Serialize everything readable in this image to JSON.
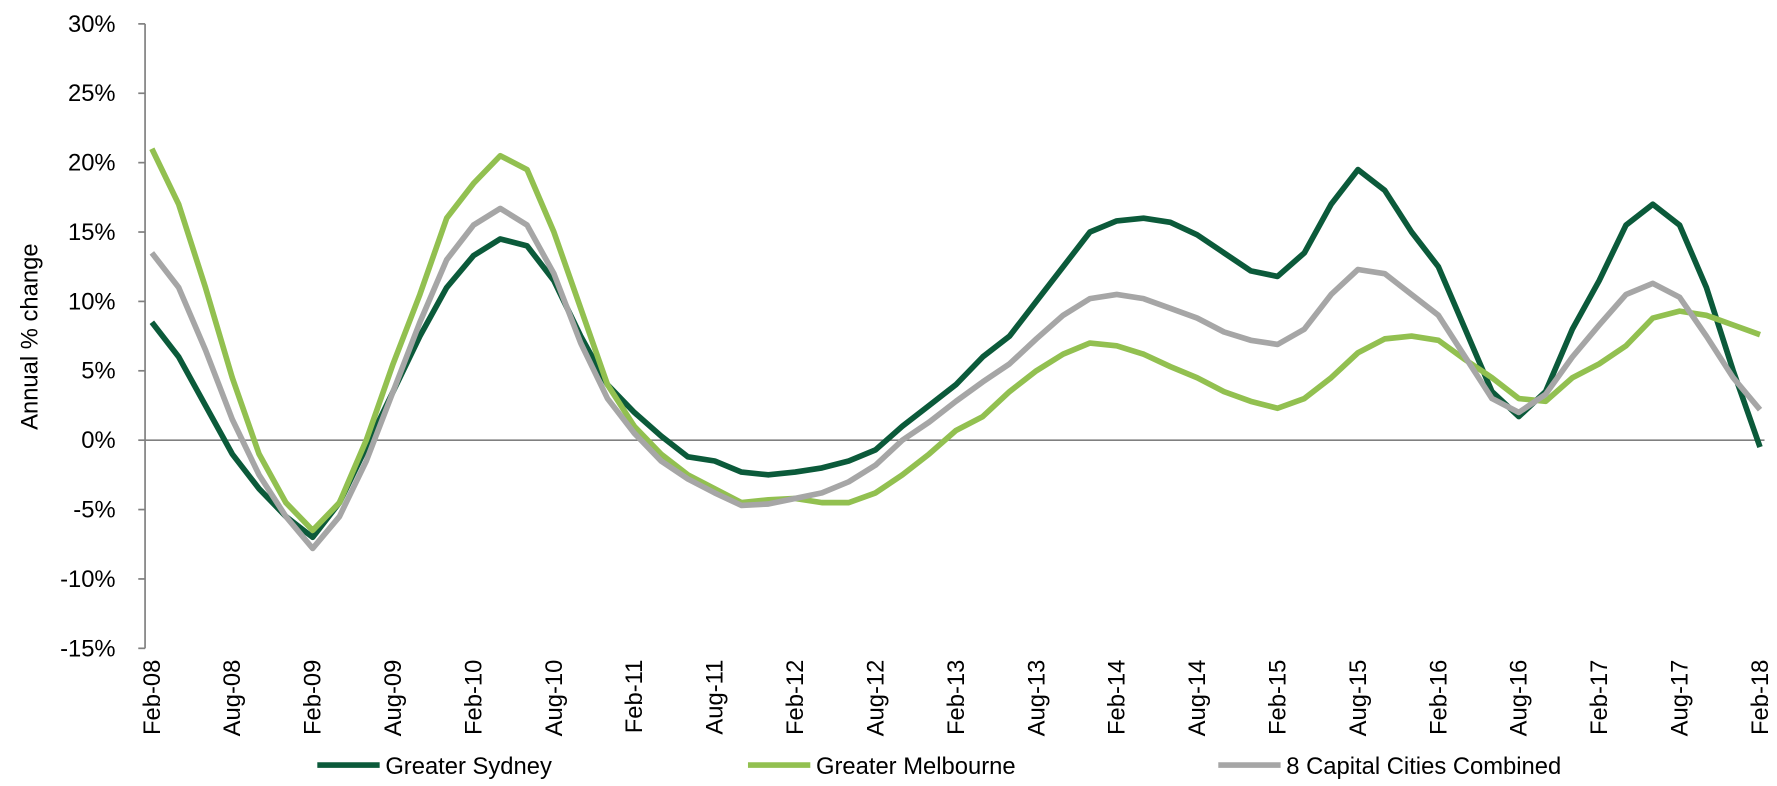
{
  "chart_data": {
    "type": "line",
    "y_label": "Annual % change",
    "categories": [
      "Feb-08",
      null,
      null,
      "Aug-08",
      null,
      null,
      "Feb-09",
      null,
      null,
      "Aug-09",
      null,
      null,
      "Feb-10",
      null,
      null,
      "Aug-10",
      null,
      null,
      "Feb-11",
      null,
      null,
      "Aug-11",
      null,
      null,
      "Feb-12",
      null,
      null,
      "Aug-12",
      null,
      null,
      "Feb-13",
      null,
      null,
      "Aug-13",
      null,
      null,
      "Feb-14",
      null,
      null,
      "Aug-14",
      null,
      null,
      "Feb-15",
      null,
      null,
      "Aug-15",
      null,
      null,
      "Feb-16",
      null,
      null,
      "Aug-16",
      null,
      null,
      "Feb-17",
      null,
      null,
      "Aug-17",
      null,
      null,
      "Feb-18"
    ],
    "series": [
      {
        "name": "Greater Sydney",
        "color": "#0b5a3a",
        "values": [
          8.5,
          6,
          2.5,
          -1,
          -3.5,
          -5.5,
          -7,
          -4.5,
          -0.5,
          3.5,
          7.5,
          11,
          13.3,
          14.5,
          14,
          11.5,
          7.5,
          4,
          2,
          0.3,
          -1.2,
          -1.5,
          -2.3,
          -2.5,
          -2.3,
          -2,
          -1.5,
          -0.7,
          1,
          2.5,
          4,
          6,
          7.5,
          10,
          12.5,
          15,
          15.8,
          16,
          15.7,
          14.8,
          13.5,
          12.2,
          11.8,
          13.5,
          17,
          19.5,
          18,
          15,
          12.5,
          8,
          3.5,
          1.7,
          3.5,
          8,
          11.5,
          15.5,
          17,
          15.5,
          11,
          5,
          -0.5
        ]
      },
      {
        "name": "Greater Melbourne",
        "color": "#92c050",
        "values": [
          21,
          17,
          11,
          4.5,
          -1,
          -4.5,
          -6.5,
          -4.5,
          0,
          5.5,
          10.5,
          16,
          18.5,
          20.5,
          19.5,
          15,
          9.5,
          4,
          1,
          -1,
          -2.5,
          -3.5,
          -4.5,
          -4.3,
          -4.2,
          -4.5,
          -4.5,
          -3.8,
          -2.5,
          -1,
          0.7,
          1.7,
          3.5,
          5,
          6.2,
          7,
          6.8,
          6.2,
          5.3,
          4.5,
          3.5,
          2.8,
          2.3,
          3,
          4.5,
          6.3,
          7.3,
          7.5,
          7.2,
          5.8,
          4.5,
          3,
          2.8,
          4.5,
          5.5,
          6.8,
          8.8,
          9.3,
          9,
          8.3,
          7.6
        ]
      },
      {
        "name": "8 Capital Cities Combined",
        "color": "#a6a6a6",
        "values": [
          13.5,
          11,
          6.5,
          1.5,
          -2.5,
          -5.5,
          -7.8,
          -5.5,
          -1.5,
          3.5,
          8.5,
          13,
          15.5,
          16.7,
          15.5,
          12,
          7,
          3,
          0.5,
          -1.5,
          -2.8,
          -3.8,
          -4.7,
          -4.6,
          -4.2,
          -3.8,
          -3,
          -1.8,
          0,
          1.3,
          2.8,
          4.2,
          5.5,
          7.3,
          9,
          10.2,
          10.5,
          10.2,
          9.5,
          8.8,
          7.8,
          7.2,
          6.9,
          8,
          10.5,
          12.3,
          12,
          10.5,
          9,
          6,
          3,
          2,
          3.3,
          6,
          8.3,
          10.5,
          11.3,
          10.3,
          7.5,
          4.5,
          2.2
        ]
      }
    ],
    "ylim": [
      -15,
      30
    ],
    "yticks": [
      {
        "value": -15,
        "label": "-15%"
      },
      {
        "value": -10,
        "label": "-10%"
      },
      {
        "value": -5,
        "label": "-5%"
      },
      {
        "value": 0,
        "label": "0%"
      },
      {
        "value": 5,
        "label": "5%"
      },
      {
        "value": 10,
        "label": "10%"
      },
      {
        "value": 15,
        "label": "15%"
      },
      {
        "value": 20,
        "label": "20%"
      },
      {
        "value": 25,
        "label": "25%"
      },
      {
        "value": 30,
        "label": "30%"
      }
    ],
    "legend": "bottom"
  }
}
